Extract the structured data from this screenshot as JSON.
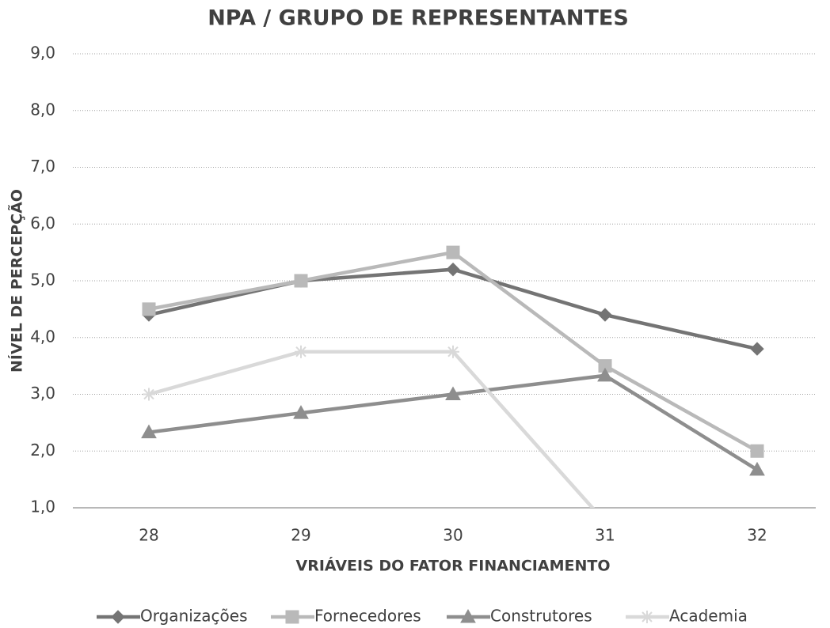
{
  "chart_data": {
    "type": "line",
    "title": "NPA / GRUPO DE REPRESENTANTES",
    "x_label": "VRIÁVEIS DO FATOR FINANCIAMENTO",
    "y_label": "NÍVEL DE PERCEPÇÃO",
    "categories": [
      "28",
      "29",
      "30",
      "31",
      "32"
    ],
    "series": [
      {
        "name": "Organizações",
        "color": "#747474",
        "marker": "diamond",
        "values": [
          4.4,
          5.0,
          5.2,
          4.4,
          3.8
        ]
      },
      {
        "name": "Fornecedores",
        "color": "#b9b9b9",
        "marker": "square",
        "values": [
          4.5,
          5.0,
          5.5,
          3.5,
          2.0
        ]
      },
      {
        "name": "Construtores",
        "color": "#8e8e8e",
        "marker": "triangle",
        "values": [
          2.33,
          2.67,
          3.0,
          3.33,
          1.67
        ]
      },
      {
        "name": "Academia",
        "color": "#d9d9d9",
        "marker": "star",
        "values": [
          3.0,
          3.75,
          3.75,
          0.75,
          null
        ]
      }
    ],
    "ylim": [
      1,
      9
    ],
    "yticks": [
      {
        "value": 1,
        "label": "1,0"
      },
      {
        "value": 2,
        "label": "2,0"
      },
      {
        "value": 3,
        "label": "3,0"
      },
      {
        "value": 4,
        "label": "4,0"
      },
      {
        "value": 5,
        "label": "5,0"
      },
      {
        "value": 6,
        "label": "6,0"
      },
      {
        "value": 7,
        "label": "7,0"
      },
      {
        "value": 8,
        "label": "8,0"
      },
      {
        "value": 9,
        "label": "9,0"
      }
    ],
    "grid": true,
    "legend": "bottom"
  }
}
